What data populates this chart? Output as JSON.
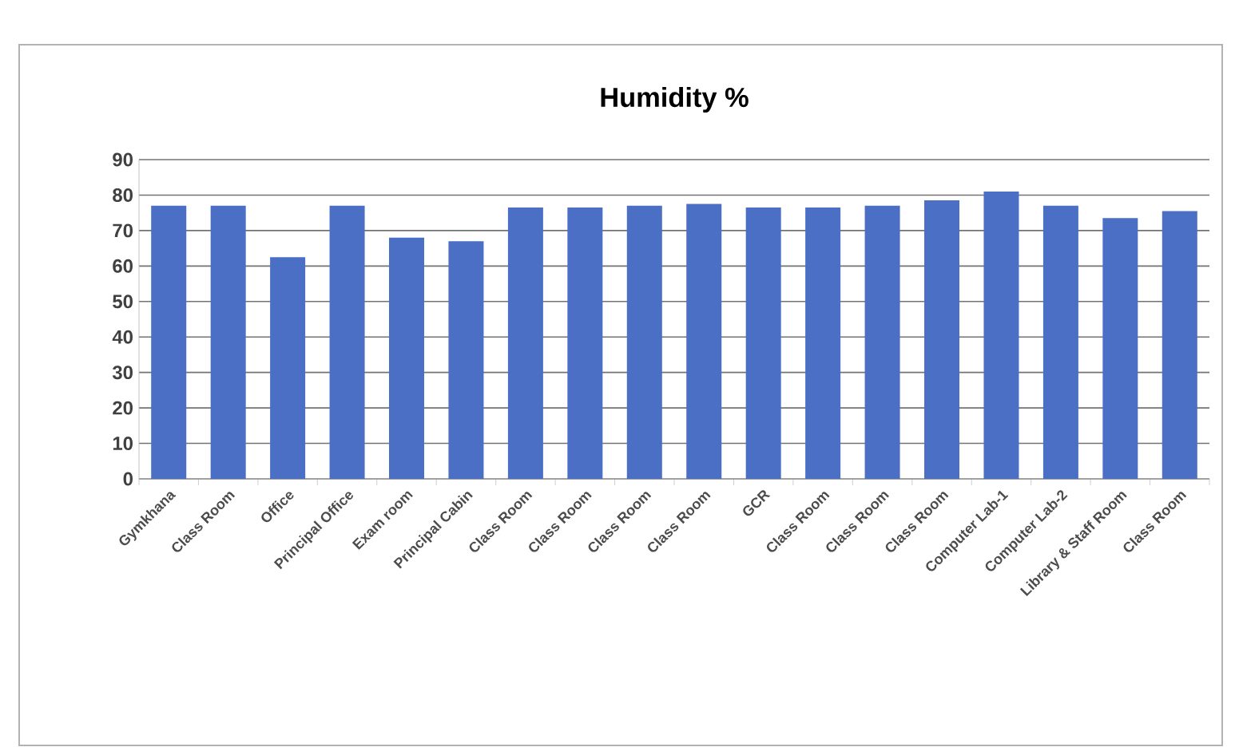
{
  "chart_data": {
    "type": "bar",
    "title": "Humidity %",
    "categories": [
      "Gymkhana",
      "Class Room",
      "Office",
      "Principal Office",
      "Exam room",
      "Principal Cabin",
      "Class Room",
      "Class Room",
      "Class Room",
      "Class Room",
      "GCR",
      "Class Room",
      "Class Room",
      "Class Room",
      "Computer Lab-1",
      "Computer Lab-2",
      "Library & Staff Room",
      "Class Room"
    ],
    "values": [
      77,
      77,
      62.5,
      77,
      68,
      67,
      76.5,
      76.5,
      77,
      77.5,
      76.5,
      76.5,
      77,
      78.5,
      81,
      77,
      73.5,
      75.5
    ],
    "color": "#4a6fc4",
    "ylim": [
      0,
      90
    ],
    "yticks": [
      0,
      10,
      20,
      30,
      40,
      50,
      60,
      70,
      80,
      90
    ],
    "grid": "y"
  }
}
